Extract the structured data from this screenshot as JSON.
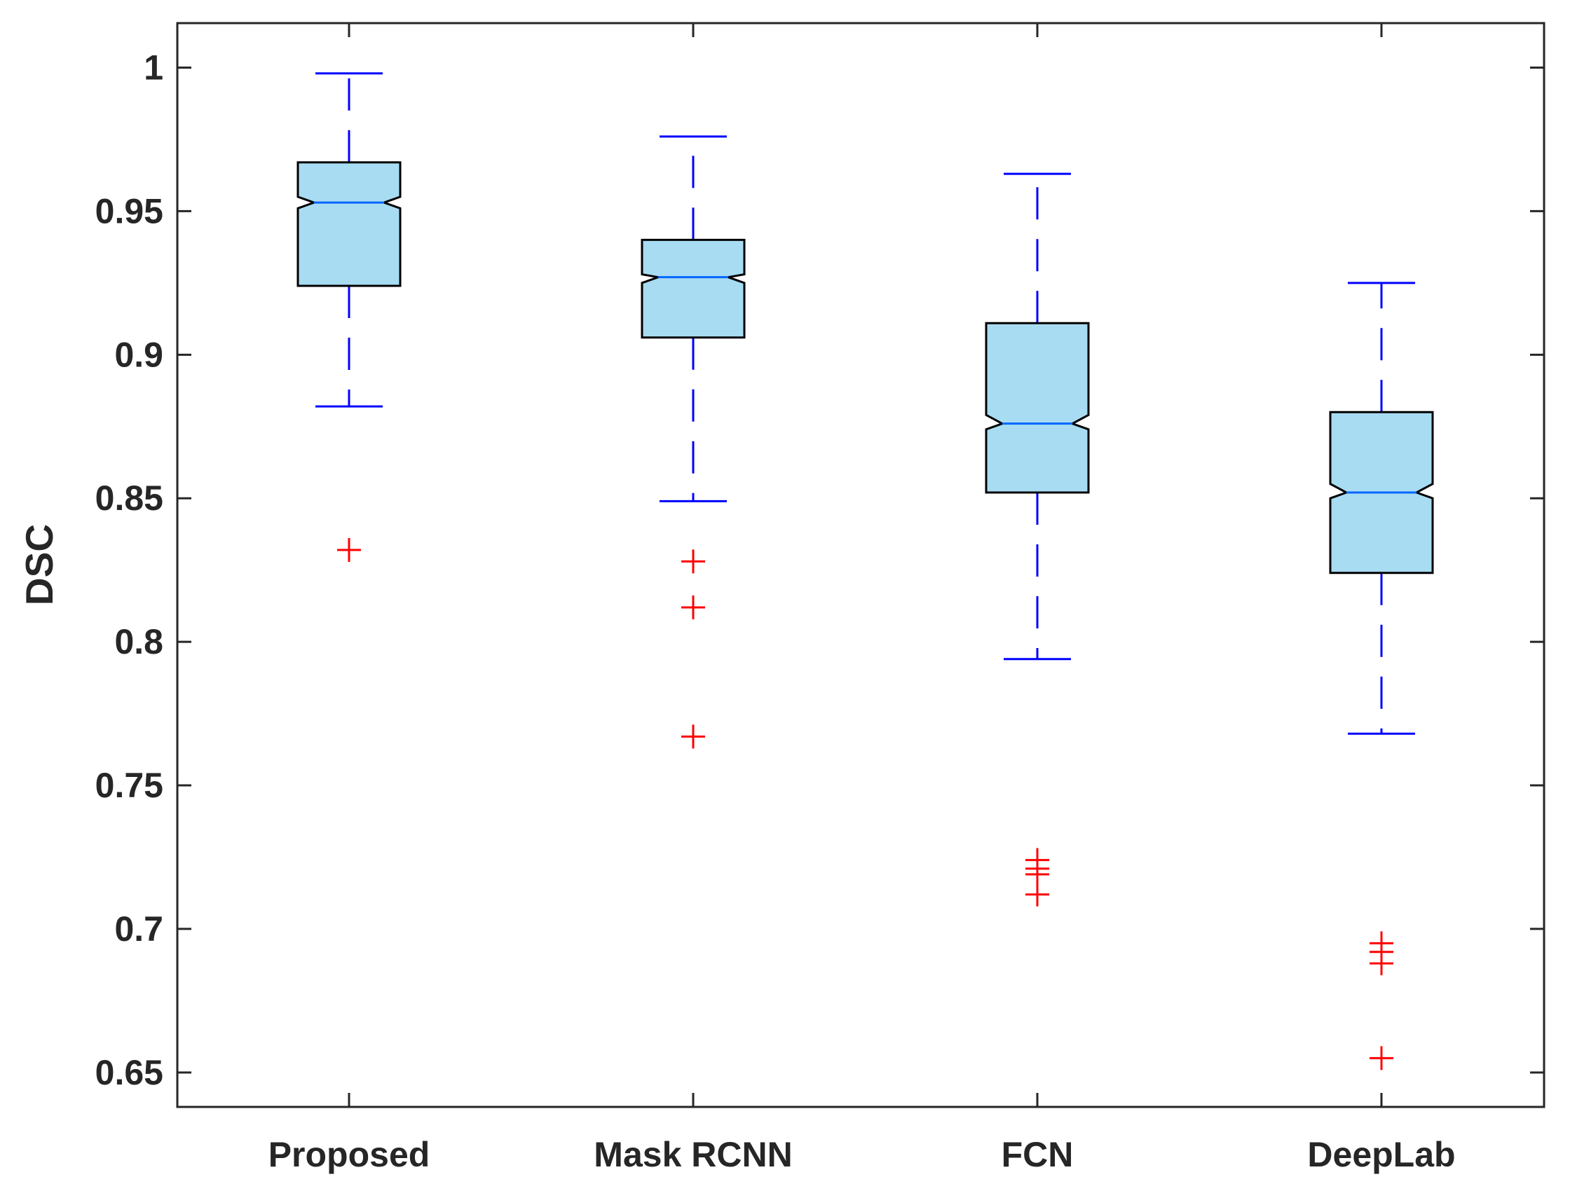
{
  "chart_data": {
    "type": "box",
    "title": "",
    "xlabel": "",
    "ylabel": "DSC",
    "ylim": [
      0.638,
      1.0155
    ],
    "yticks": [
      0.65,
      0.7,
      0.75,
      0.8,
      0.85,
      0.9,
      0.95,
      1
    ],
    "ytick_labels": [
      "0.65",
      "0.7",
      "0.75",
      "0.8",
      "0.85",
      "0.9",
      "0.95",
      "1"
    ],
    "notched": true,
    "colors": {
      "box_fill": "#a8dcf2",
      "box_edge": "#000000",
      "median": "#0066ff",
      "whisker": "#0000ff",
      "outlier": "#ff0000",
      "axis": "#262626"
    },
    "categories": [
      "Proposed",
      "Mask RCNN",
      "FCN",
      "DeepLab"
    ],
    "boxes": [
      {
        "name": "Proposed",
        "whisker_low": 0.882,
        "q1": 0.924,
        "median": 0.953,
        "q3": 0.967,
        "whisker_high": 0.998,
        "notch_low": 0.951,
        "notch_high": 0.955,
        "outliers": [
          0.832
        ]
      },
      {
        "name": "Mask RCNN",
        "whisker_low": 0.849,
        "q1": 0.906,
        "median": 0.927,
        "q3": 0.94,
        "whisker_high": 0.976,
        "notch_low": 0.925,
        "notch_high": 0.928,
        "outliers": [
          0.828,
          0.812,
          0.767
        ]
      },
      {
        "name": "FCN",
        "whisker_low": 0.794,
        "q1": 0.852,
        "median": 0.876,
        "q3": 0.911,
        "whisker_high": 0.963,
        "notch_low": 0.874,
        "notch_high": 0.879,
        "outliers": [
          0.724,
          0.721,
          0.719,
          0.712
        ]
      },
      {
        "name": "DeepLab",
        "whisker_low": 0.768,
        "q1": 0.824,
        "median": 0.852,
        "q3": 0.88,
        "whisker_high": 0.925,
        "notch_low": 0.85,
        "notch_high": 0.855,
        "outliers": [
          0.695,
          0.692,
          0.688,
          0.655
        ]
      }
    ]
  }
}
